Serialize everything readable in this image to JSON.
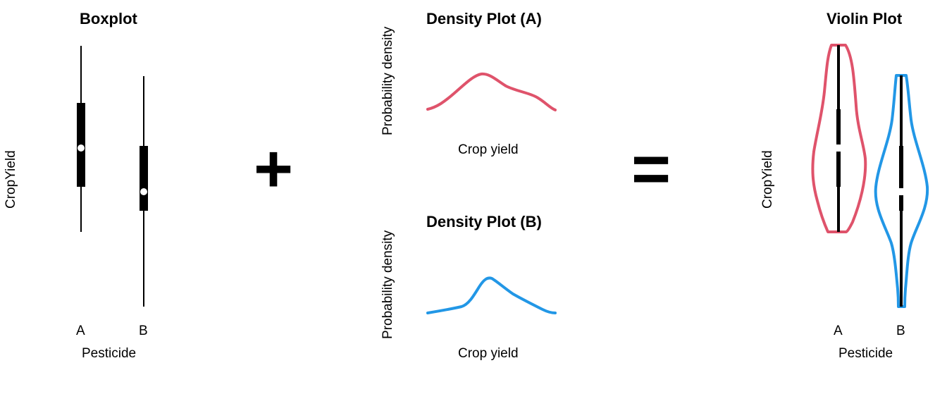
{
  "boxplot": {
    "title": "Boxplot",
    "ylabel": "CropYield",
    "xlabel": "Pesticide",
    "categories": [
      "A",
      "B"
    ]
  },
  "density_a": {
    "title": "Density Plot (A)",
    "ylabel": "Probability density",
    "xlabel": "Crop yield",
    "color": "#DF536B"
  },
  "density_b": {
    "title": "Density Plot (B)",
    "ylabel": "Probability density",
    "xlabel": "Crop yield",
    "color": "#2297E6"
  },
  "operators": {
    "plus": "+",
    "equals": "="
  },
  "violin": {
    "title": "Violin Plot",
    "ylabel": "CropYield",
    "xlabel": "Pesticide",
    "categories": [
      "A",
      "B"
    ],
    "colors": [
      "#DF536B",
      "#2297E6"
    ]
  }
}
